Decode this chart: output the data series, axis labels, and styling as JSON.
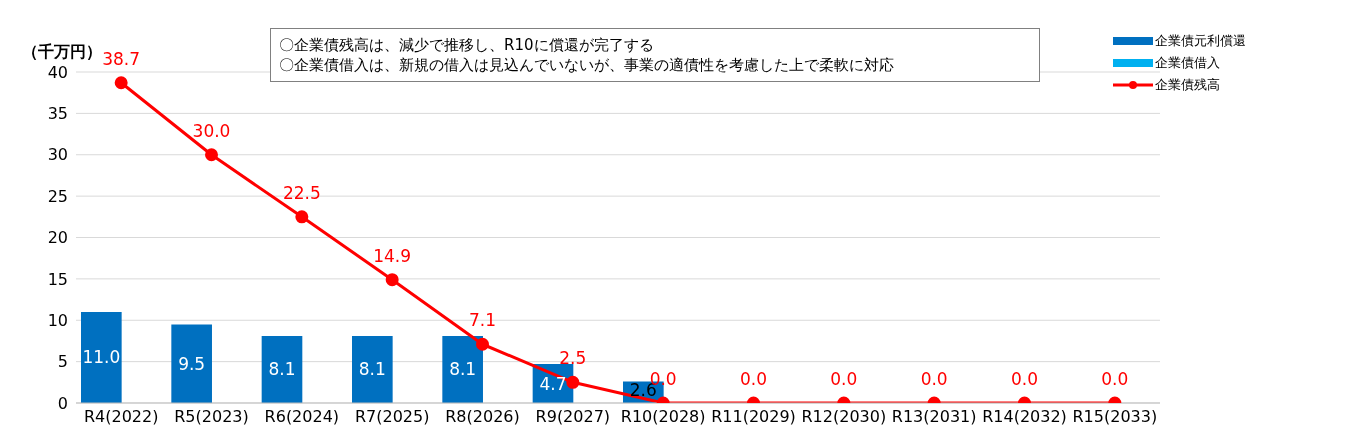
{
  "chart_data": {
    "type": "bar",
    "ylabel": "（千万円）",
    "categories": [
      "R4(2022)",
      "R5(2023)",
      "R6(2024)",
      "R7(2025)",
      "R8(2026)",
      "R9(2027)",
      "R10(2028)",
      "R11(2029)",
      "R12(2030)",
      "R13(2031)",
      "R14(2032)",
      "R15(2033)"
    ],
    "series": [
      {
        "name": "企業債元利償還",
        "color": "#0070c0",
        "values": [
          11.0,
          9.5,
          8.1,
          8.1,
          8.1,
          4.7,
          2.6,
          null,
          null,
          null,
          null,
          null
        ],
        "value_labels": [
          "11.0",
          "9.5",
          "8.1",
          "8.1",
          "8.1",
          "4.7",
          "2.6",
          null,
          null,
          null,
          null,
          null
        ]
      },
      {
        "name": "企業債借入",
        "color": "#00b0f0",
        "values": [
          null,
          null,
          null,
          null,
          null,
          null,
          null,
          null,
          null,
          null,
          null,
          null
        ]
      },
      {
        "name": "企業債残高",
        "type": "line",
        "color": "#ff0000",
        "marker": "circle",
        "values": [
          38.7,
          30.0,
          22.5,
          14.9,
          7.1,
          2.5,
          0.0,
          0.0,
          0.0,
          0.0,
          0.0,
          0.0
        ],
        "value_labels": [
          "38.7",
          "30.0",
          "22.5",
          "14.9",
          "7.1",
          "2.5",
          "0.0",
          "0.0",
          "0.0",
          "0.0",
          "0.0",
          "0.0"
        ]
      }
    ],
    "ylim": [
      0,
      40
    ],
    "yticks": [
      0,
      5,
      10,
      15,
      20,
      25,
      30,
      35,
      40
    ],
    "grid": "y",
    "legend": "top right",
    "annotations": [
      "〇企業債残高は、減少で推移し、R10に償還が完了する",
      "〇企業債借入は、新規の借入は見込んでいないが、事業の適債性を考慮した上で柔軟に対応"
    ]
  }
}
